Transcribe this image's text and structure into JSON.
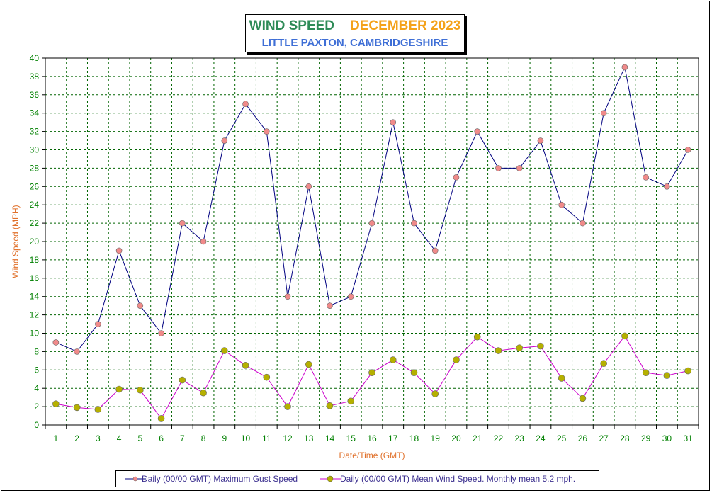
{
  "title": {
    "main": "WIND SPEED",
    "period": "DECEMBER 2023",
    "location": "LITTLE PAXTON, CAMBRIDGESHIRE"
  },
  "colors": {
    "gust_line": "#000080",
    "gust_marker": "#f08a8a",
    "mean_line": "#cc00cc",
    "mean_marker": "#b5b000",
    "grid": "#006400",
    "tick_labels": "#008000",
    "axis_titles": "#e0702a"
  },
  "legend": {
    "gust": "Daily (00/00 GMT) Maximum Gust Speed",
    "mean": "Daily (00/00 GMT) Mean Wind Speed. Monthly mean 5.2 mph."
  },
  "chart_data": {
    "type": "line",
    "xlabel": "Date/Time (GMT)",
    "ylabel": "Wind Speed (MPH)",
    "ylim": [
      0,
      40
    ],
    "ytick_step": 2,
    "grid": true,
    "legend_position": "bottom",
    "x": [
      1,
      2,
      3,
      4,
      5,
      6,
      7,
      8,
      9,
      10,
      11,
      12,
      13,
      14,
      15,
      16,
      17,
      18,
      19,
      20,
      21,
      22,
      23,
      24,
      25,
      26,
      27,
      28,
      29,
      30,
      31
    ],
    "series": [
      {
        "name": "Daily (00/00 GMT) Maximum Gust Speed",
        "values": [
          9,
          8,
          11,
          19,
          13,
          10,
          22,
          20,
          31,
          35,
          32,
          14,
          26,
          13,
          14,
          22,
          33,
          22,
          19,
          27,
          32,
          28,
          28,
          31,
          24,
          22,
          34,
          39,
          27,
          26,
          30
        ]
      },
      {
        "name": "Daily (00/00 GMT) Mean Wind Speed. Monthly mean 5.2 mph.",
        "values": [
          2.3,
          1.9,
          1.7,
          3.9,
          3.8,
          0.7,
          4.9,
          3.5,
          8.1,
          6.5,
          5.2,
          2.0,
          6.6,
          2.1,
          2.6,
          5.7,
          7.1,
          5.7,
          3.4,
          7.1,
          9.6,
          8.1,
          8.4,
          8.6,
          5.1,
          2.9,
          6.7,
          9.7,
          5.7,
          5.4,
          5.9
        ]
      }
    ]
  }
}
